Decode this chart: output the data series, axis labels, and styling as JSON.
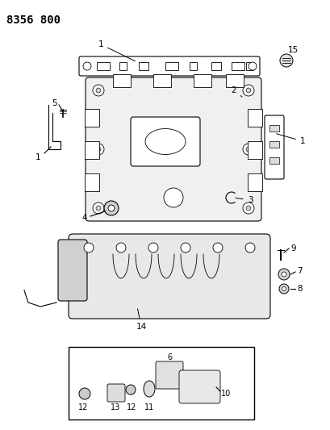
{
  "title": "8356 800",
  "bg_color": "#ffffff",
  "line_color": "#000000",
  "title_fontsize": 10,
  "label_fontsize": 7.5,
  "figsize": [
    4.1,
    5.33
  ],
  "dpi": 100
}
